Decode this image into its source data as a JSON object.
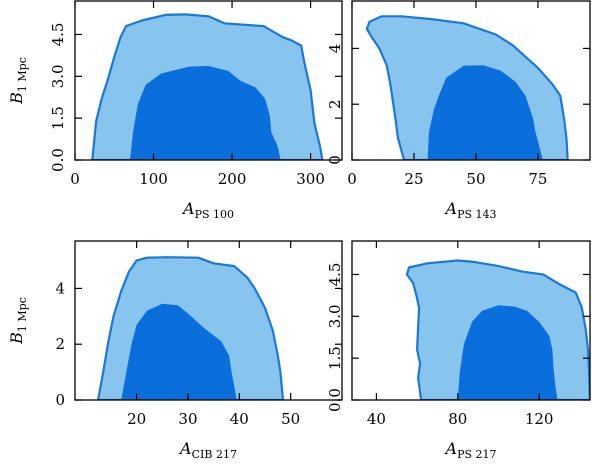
{
  "colors": {
    "outer_fill": "#87c4ee",
    "inner_fill": "#0a6fdc",
    "contour_line": "#1a78d8"
  },
  "chart_data": [
    {
      "type": "contour",
      "xlabel": "A",
      "xlabel_sub": "PS 100",
      "ylabel": "B",
      "ylabel_sub": "1 Mpc",
      "xlim": [
        0,
        340
      ],
      "ylim": [
        0,
        5.7
      ],
      "xticks": [
        0,
        100,
        200,
        300
      ],
      "xtick_labels": [
        "0",
        "100",
        "200",
        "300"
      ],
      "yticks": [
        0,
        1.5,
        3.0,
        4.5
      ],
      "ytick_labels": [
        "0.0",
        "1.5",
        "3.0",
        "4.5"
      ],
      "ytick_rotated": true,
      "outer": [
        [
          22,
          0
        ],
        [
          27,
          1.4
        ],
        [
          34,
          2.2
        ],
        [
          42,
          2.9
        ],
        [
          50,
          3.7
        ],
        [
          58,
          4.4
        ],
        [
          65,
          4.8
        ],
        [
          85,
          5.0
        ],
        [
          115,
          5.2
        ],
        [
          140,
          5.22
        ],
        [
          170,
          5.15
        ],
        [
          190,
          4.9
        ],
        [
          240,
          4.8
        ],
        [
          265,
          4.4
        ],
        [
          275,
          4.3
        ],
        [
          288,
          4.1
        ],
        [
          292,
          3.5
        ],
        [
          300,
          2.5
        ],
        [
          305,
          1.3
        ],
        [
          312,
          0.5
        ],
        [
          315,
          0
        ]
      ],
      "inner": [
        [
          70,
          0
        ],
        [
          74,
          1.0
        ],
        [
          80,
          2.0
        ],
        [
          90,
          2.7
        ],
        [
          110,
          3.1
        ],
        [
          145,
          3.35
        ],
        [
          170,
          3.37
        ],
        [
          195,
          3.2
        ],
        [
          210,
          2.85
        ],
        [
          230,
          2.6
        ],
        [
          242,
          2.2
        ],
        [
          248,
          1.6
        ],
        [
          250,
          1.0
        ],
        [
          258,
          0.5
        ],
        [
          262,
          0
        ]
      ]
    },
    {
      "type": "contour",
      "xlabel": "A",
      "xlabel_sub": "PS 143",
      "ylabel": "",
      "ylabel_sub": "",
      "xlim": [
        0,
        96
      ],
      "ylim": [
        0,
        5.7
      ],
      "xticks": [
        0,
        25,
        50,
        75
      ],
      "xtick_labels": [
        "0",
        "25",
        "50",
        "75"
      ],
      "yticks": [
        0,
        2,
        4
      ],
      "ytick_labels": [
        "0",
        "2",
        "4"
      ],
      "ytick_rotated": true,
      "outer": [
        [
          21,
          0
        ],
        [
          18.5,
          0.8
        ],
        [
          17.5,
          1.5
        ],
        [
          16.5,
          2.1
        ],
        [
          15.5,
          2.7
        ],
        [
          14,
          3.4
        ],
        [
          11,
          4.0
        ],
        [
          8,
          4.4
        ],
        [
          6,
          4.7
        ],
        [
          7,
          4.95
        ],
        [
          12,
          5.15
        ],
        [
          20,
          5.15
        ],
        [
          32,
          5.05
        ],
        [
          45,
          4.9
        ],
        [
          58,
          4.5
        ],
        [
          65,
          4.1
        ],
        [
          75,
          3.3
        ],
        [
          81,
          2.7
        ],
        [
          84,
          2.3
        ],
        [
          85.5,
          1.5
        ],
        [
          86.5,
          0.8
        ],
        [
          87,
          0
        ]
      ],
      "inner": [
        [
          30.5,
          0
        ],
        [
          31,
          1.0
        ],
        [
          33,
          1.8
        ],
        [
          35,
          2.3
        ],
        [
          38,
          2.95
        ],
        [
          45,
          3.38
        ],
        [
          53,
          3.4
        ],
        [
          60,
          3.2
        ],
        [
          66,
          2.8
        ],
        [
          70,
          2.3
        ],
        [
          73,
          1.5
        ],
        [
          74,
          1.0
        ],
        [
          77,
          0
        ]
      ]
    },
    {
      "type": "contour",
      "xlabel": "A",
      "xlabel_sub": "CIB 217",
      "ylabel": "B",
      "ylabel_sub": "1 Mpc",
      "xlim": [
        8,
        60
      ],
      "ylim": [
        0,
        5.7
      ],
      "xticks": [
        20,
        30,
        40,
        50
      ],
      "xtick_labels": [
        "20",
        "30",
        "40",
        "50"
      ],
      "yticks": [
        0,
        2,
        4
      ],
      "ytick_labels": [
        "0",
        "2",
        "4"
      ],
      "ytick_rotated": false,
      "outer": [
        [
          12.5,
          0
        ],
        [
          13.5,
          1.0
        ],
        [
          14.5,
          2.1
        ],
        [
          15.5,
          3.0
        ],
        [
          17,
          3.9
        ],
        [
          18.5,
          4.6
        ],
        [
          20,
          5.0
        ],
        [
          22,
          5.1
        ],
        [
          26,
          5.12
        ],
        [
          32,
          5.1
        ],
        [
          35,
          4.9
        ],
        [
          39,
          4.8
        ],
        [
          41.5,
          4.4
        ],
        [
          43,
          4.0
        ],
        [
          45,
          3.3
        ],
        [
          46.5,
          2.5
        ],
        [
          47.5,
          1.6
        ],
        [
          48,
          1.0
        ],
        [
          48.5,
          0
        ]
      ],
      "inner": [
        [
          17,
          0
        ],
        [
          18,
          1.0
        ],
        [
          19,
          2.0
        ],
        [
          20,
          2.7
        ],
        [
          22,
          3.2
        ],
        [
          25,
          3.45
        ],
        [
          28,
          3.4
        ],
        [
          30,
          3.1
        ],
        [
          33,
          2.6
        ],
        [
          36.5,
          2.1
        ],
        [
          38,
          1.6
        ],
        [
          38.5,
          1.0
        ],
        [
          39,
          0.5
        ],
        [
          39.5,
          0
        ]
      ]
    },
    {
      "type": "contour",
      "xlabel": "A",
      "xlabel_sub": "PS 217",
      "ylabel": "",
      "ylabel_sub": "",
      "xlim": [
        28,
        145
      ],
      "ylim": [
        0,
        5.7
      ],
      "xticks": [
        40,
        80,
        120
      ],
      "xtick_labels": [
        "40",
        "80",
        "120"
      ],
      "yticks": [
        0,
        1.5,
        3.0,
        4.5
      ],
      "ytick_labels": [
        "0.0",
        "1.5",
        "3.0",
        "4.5"
      ],
      "ytick_rotated": true,
      "outer": [
        [
          62,
          0
        ],
        [
          60.5,
          0.8
        ],
        [
          61.5,
          1.3
        ],
        [
          60,
          1.8
        ],
        [
          60.5,
          2.6
        ],
        [
          61,
          3.3
        ],
        [
          59.5,
          3.8
        ],
        [
          58,
          4.2
        ],
        [
          55,
          4.5
        ],
        [
          56,
          4.75
        ],
        [
          65,
          4.9
        ],
        [
          80,
          5.0
        ],
        [
          88,
          4.95
        ],
        [
          100,
          4.8
        ],
        [
          112,
          4.6
        ],
        [
          122,
          4.5
        ],
        [
          130,
          4.15
        ],
        [
          138,
          3.85
        ],
        [
          141,
          3.3
        ],
        [
          143,
          2.5
        ],
        [
          144,
          1.8
        ],
        [
          144.5,
          1.0
        ],
        [
          145,
          0
        ]
      ],
      "inner": [
        [
          80,
          0
        ],
        [
          81,
          1.0
        ],
        [
          83,
          2.0
        ],
        [
          87,
          2.8
        ],
        [
          92,
          3.2
        ],
        [
          100,
          3.4
        ],
        [
          108,
          3.35
        ],
        [
          114,
          3.2
        ],
        [
          120,
          2.8
        ],
        [
          125,
          2.3
        ],
        [
          126.5,
          1.8
        ],
        [
          127,
          1.2
        ],
        [
          128,
          0.5
        ],
        [
          129,
          0
        ]
      ]
    }
  ]
}
